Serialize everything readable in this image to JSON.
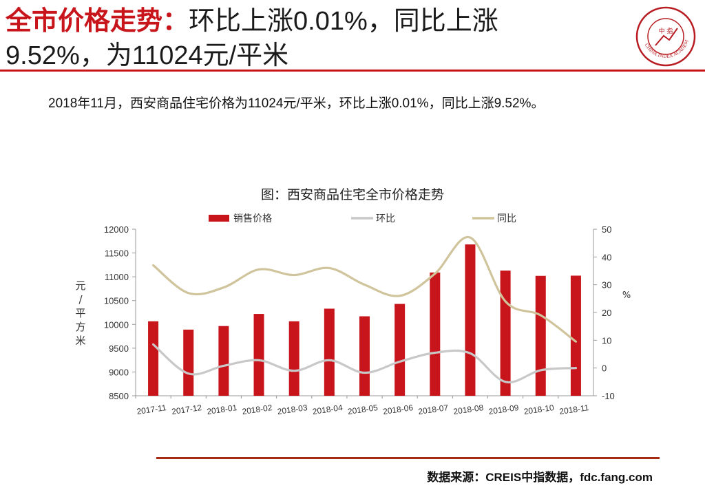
{
  "header": {
    "title_highlight": "全市价格走势：",
    "title_rest_line1": "环比上涨0.01%，同比上涨",
    "title_line2": "9.52%，为11024元/平米",
    "logo_text_center": "中 指",
    "logo_text_ring": "CHINA INDEX ACADEMY"
  },
  "summary": "2018年11月，西安商品住宅价格为11024元/平米，环比上涨0.01%，同比上涨9.52%。",
  "chart_data": {
    "type": "bar",
    "title": "图：西安商品住宅全市价格走势",
    "categories": [
      "2017-11",
      "2017-12",
      "2018-01",
      "2018-02",
      "2018-03",
      "2018-04",
      "2018-05",
      "2018-06",
      "2018-07",
      "2018-08",
      "2018-09",
      "2018-10",
      "2018-11"
    ],
    "series": [
      {
        "name": "销售价格",
        "type": "bar",
        "axis": "left",
        "color": "#c8141b",
        "values": [
          10065,
          9890,
          9965,
          10220,
          10065,
          10330,
          10170,
          10430,
          11090,
          11680,
          11130,
          11020,
          11024
        ]
      },
      {
        "name": "环比",
        "type": "line",
        "axis": "right",
        "color": "#c8c8c8",
        "values": [
          8.5,
          -2,
          0.8,
          2.8,
          -1,
          2.8,
          -1.7,
          2.3,
          5.5,
          5.3,
          -5,
          -0.8,
          0.01
        ]
      },
      {
        "name": "同比",
        "type": "line",
        "axis": "right",
        "color": "#cfc49b",
        "values": [
          37,
          27,
          29,
          35.5,
          33.5,
          36,
          30,
          26,
          34,
          47,
          24,
          19,
          9.52
        ]
      }
    ],
    "ylabel": "元/平方米",
    "y2label": "%",
    "ylim": [
      8500,
      12000
    ],
    "yticks": [
      8500,
      9000,
      9500,
      10000,
      10500,
      11000,
      11500,
      12000
    ],
    "y2lim": [
      -10,
      50
    ],
    "y2ticks": [
      -10,
      0,
      10,
      20,
      30,
      40,
      50
    ],
    "legend": "top",
    "grid": false
  },
  "footer": {
    "source": "数据来源：CREIS中指数据，fdc.fang.com"
  }
}
